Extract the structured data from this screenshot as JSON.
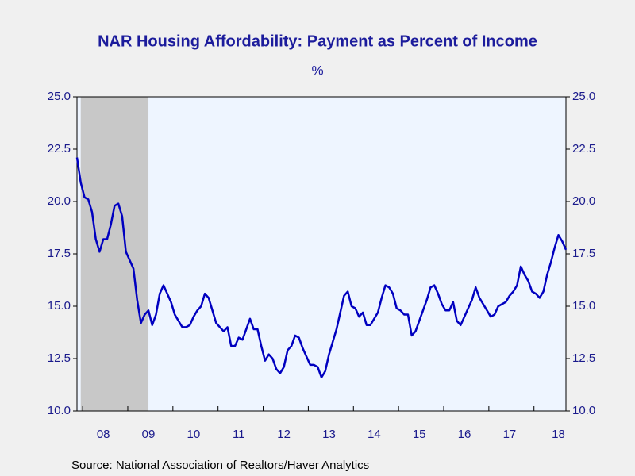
{
  "chart_data": {
    "type": "line",
    "title": "NAR Housing Affordability: Payment as Percent of Income",
    "subtitle": "%",
    "source": "Source:  National Association of Realtors/Haver Analytics",
    "categories": [
      null,
      null,
      null,
      null,
      null,
      null,
      null,
      "08",
      null,
      null,
      null,
      null,
      null,
      null,
      null,
      null,
      null,
      null,
      null,
      "09",
      null,
      null,
      null,
      null,
      null,
      null,
      null,
      null,
      null,
      null,
      null,
      "10",
      null,
      null,
      null,
      null,
      null,
      null,
      null,
      null,
      null,
      null,
      null,
      "11",
      null,
      null,
      null,
      null,
      null,
      null,
      null,
      null,
      null,
      null,
      null,
      "12",
      null,
      null,
      null,
      null,
      null,
      null,
      null,
      null,
      null,
      null,
      null,
      "13",
      null,
      null,
      null,
      null,
      null,
      null,
      null,
      null,
      null,
      null,
      null,
      "14",
      null,
      null,
      null,
      null,
      null,
      null,
      null,
      null,
      null,
      null,
      null,
      "15",
      null,
      null,
      null,
      null,
      null,
      null,
      null,
      null,
      null,
      null,
      null,
      "16",
      null,
      null,
      null,
      null,
      null,
      null,
      null,
      null,
      null,
      null,
      null,
      "17",
      null,
      null,
      null,
      null,
      null,
      null,
      null,
      null,
      null,
      null,
      null,
      null,
      "18",
      null,
      null
    ],
    "series": [
      {
        "name": "Payment as Percent of Income",
        "color": "#0000c0",
        "values": [
          22.1,
          20.9,
          20.2,
          20.1,
          19.5,
          18.2,
          17.6,
          18.2,
          18.2,
          18.9,
          19.8,
          19.9,
          19.3,
          17.6,
          17.2,
          16.8,
          15.3,
          14.2,
          14.6,
          14.8,
          14.1,
          14.6,
          15.6,
          16.0,
          15.6,
          15.2,
          14.6,
          14.3,
          14.0,
          14.0,
          14.1,
          14.5,
          14.8,
          15.0,
          15.6,
          15.4,
          14.8,
          14.2,
          14.0,
          13.8,
          14.0,
          13.1,
          13.1,
          13.5,
          13.4,
          13.9,
          14.4,
          13.9,
          13.9,
          13.1,
          12.4,
          12.7,
          12.5,
          12.0,
          11.8,
          12.1,
          12.9,
          13.1,
          13.6,
          13.5,
          13.0,
          12.6,
          12.2,
          12.2,
          12.1,
          11.6,
          11.9,
          12.7,
          13.3,
          13.9,
          14.7,
          15.5,
          15.7,
          15.0,
          14.9,
          14.5,
          14.7,
          14.1,
          14.1,
          14.4,
          14.7,
          15.4,
          16.0,
          15.9,
          15.6,
          14.9,
          14.8,
          14.6,
          14.6,
          13.6,
          13.8,
          14.3,
          14.8,
          15.3,
          15.9,
          16.0,
          15.6,
          15.1,
          14.8,
          14.8,
          15.2,
          14.3,
          14.1,
          14.5,
          14.9,
          15.3,
          15.9,
          15.4,
          15.1,
          14.8,
          14.5,
          14.6,
          15.0,
          15.1,
          15.2,
          15.5,
          15.7,
          16.0,
          16.9,
          16.5,
          16.2,
          15.7,
          15.6,
          15.4,
          15.7,
          16.5,
          17.1,
          17.8,
          18.4,
          18.1,
          17.7
        ]
      }
    ],
    "ylim": [
      10,
      25
    ],
    "yticks": [
      {
        "value": 10,
        "label": "10.0"
      },
      12.5,
      {
        "value": 15,
        "label": "15.0"
      },
      17.5,
      {
        "value": 20,
        "label": "20.0"
      },
      22.5,
      {
        "value": 25,
        "label": "25.0"
      }
    ],
    "grid": false
  }
}
